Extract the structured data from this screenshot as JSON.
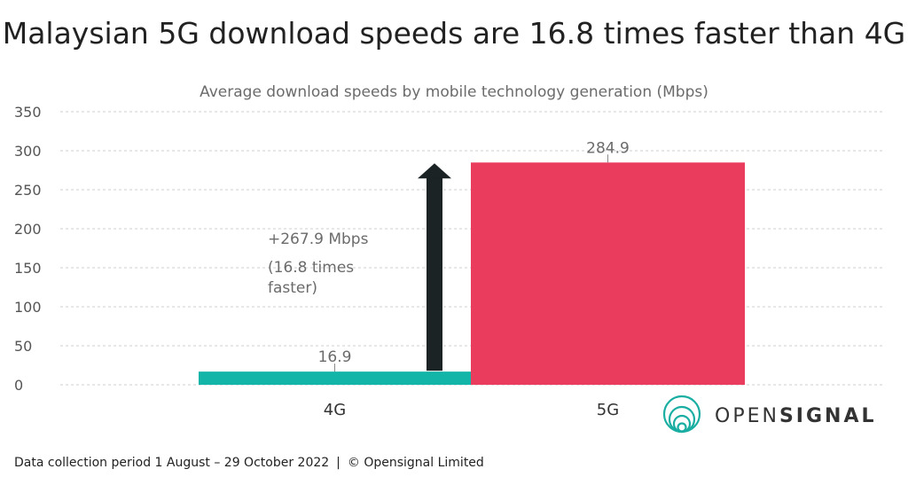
{
  "title": "Malaysian 5G download speeds are 16.8 times faster than 4G",
  "footer": {
    "period": "Data collection period 1 August – 29 October 2022",
    "separator": "|",
    "copyright": "© Opensignal Limited"
  },
  "brand": {
    "name_part1": "OPEN",
    "name_part2": "SIGNAL",
    "logo_color": "#1aaea2"
  },
  "annotation": {
    "line1": "+267.9 Mbps",
    "line2": "(16.8 times",
    "line3": "faster)",
    "arrow_color": "#1b2324"
  },
  "chart_data": {
    "type": "bar",
    "title": "Average download speeds by mobile technology generation (Mbps)",
    "categories": [
      "4G",
      "5G"
    ],
    "values": [
      16.9,
      284.9
    ],
    "value_labels": [
      "16.9",
      "284.9"
    ],
    "colors": [
      "#12b5a8",
      "#ea3d5d"
    ],
    "ylim": [
      0,
      350
    ],
    "yticks": [
      0,
      50,
      100,
      150,
      200,
      250,
      300,
      350
    ],
    "grid": true,
    "legend": "none"
  }
}
